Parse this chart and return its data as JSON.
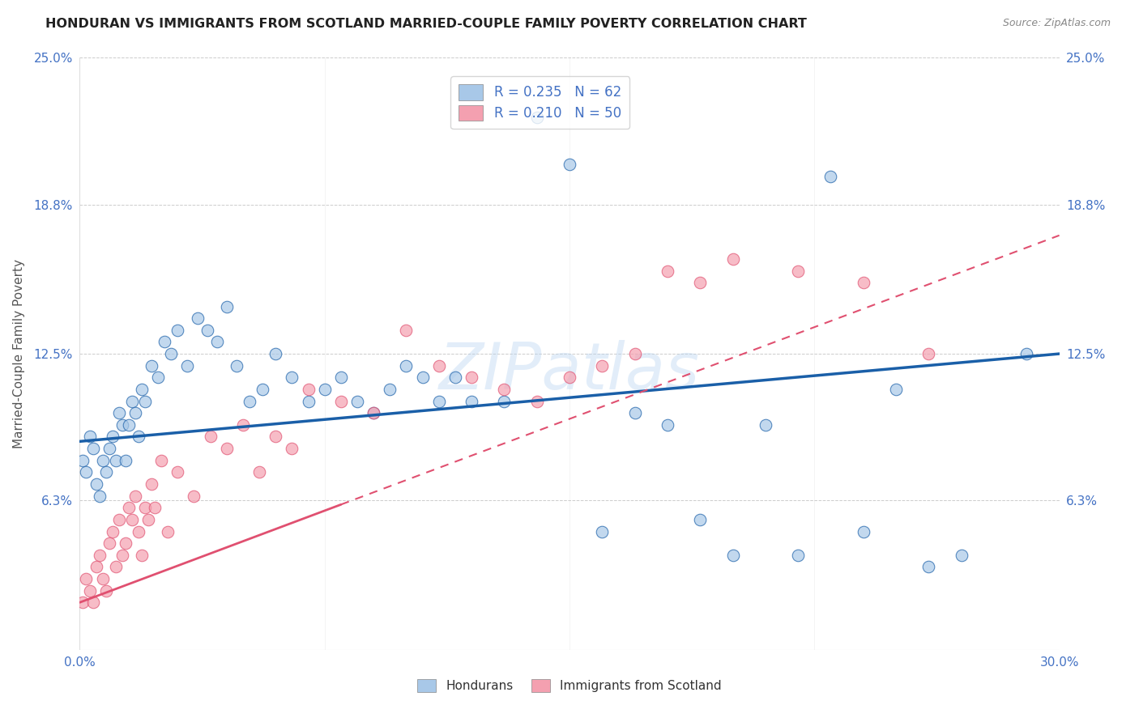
{
  "title": "HONDURAN VS IMMIGRANTS FROM SCOTLAND MARRIED-COUPLE FAMILY POVERTY CORRELATION CHART",
  "source": "Source: ZipAtlas.com",
  "ylabel": "Married-Couple Family Poverty",
  "xlim": [
    0,
    30
  ],
  "ylim": [
    0,
    25
  ],
  "ytick_vals": [
    0,
    6.3,
    12.5,
    18.8,
    25.0
  ],
  "ytick_labels": [
    "",
    "6.3%",
    "12.5%",
    "18.8%",
    "25.0%"
  ],
  "xtick_vals": [
    0,
    7.5,
    15.0,
    22.5,
    30.0
  ],
  "xtick_labels": [
    "0.0%",
    "",
    "",
    "",
    "30.0%"
  ],
  "legend_label1": "Hondurans",
  "legend_label2": "Immigrants from Scotland",
  "R1": 0.235,
  "N1": 62,
  "R2": 0.21,
  "N2": 50,
  "color1": "#a8c8e8",
  "color2": "#f4a0b0",
  "line_color1": "#1a5fa8",
  "line_color2": "#e05070",
  "watermark": "ZIPatlas",
  "background_color": "#ffffff",
  "grid_color": "#cccccc",
  "title_color": "#222222",
  "tick_label_color": "#4472c4",
  "hondurans_x": [
    0.1,
    0.2,
    0.3,
    0.4,
    0.5,
    0.6,
    0.7,
    0.8,
    0.9,
    1.0,
    1.1,
    1.2,
    1.3,
    1.4,
    1.5,
    1.6,
    1.7,
    1.8,
    1.9,
    2.0,
    2.2,
    2.4,
    2.6,
    2.8,
    3.0,
    3.3,
    3.6,
    3.9,
    4.2,
    4.5,
    4.8,
    5.2,
    5.6,
    6.0,
    6.5,
    7.0,
    7.5,
    8.0,
    8.5,
    9.0,
    9.5,
    10.0,
    10.5,
    11.0,
    11.5,
    12.0,
    13.0,
    14.0,
    15.0,
    16.0,
    17.0,
    18.0,
    19.0,
    20.0,
    21.0,
    22.0,
    23.0,
    24.0,
    25.0,
    26.0,
    27.0,
    29.0
  ],
  "hondurans_y": [
    8.0,
    7.5,
    9.0,
    8.5,
    7.0,
    6.5,
    8.0,
    7.5,
    8.5,
    9.0,
    8.0,
    10.0,
    9.5,
    8.0,
    9.5,
    10.5,
    10.0,
    9.0,
    11.0,
    10.5,
    12.0,
    11.5,
    13.0,
    12.5,
    13.5,
    12.0,
    14.0,
    13.5,
    13.0,
    14.5,
    12.0,
    10.5,
    11.0,
    12.5,
    11.5,
    10.5,
    11.0,
    11.5,
    10.5,
    10.0,
    11.0,
    12.0,
    11.5,
    10.5,
    11.5,
    10.5,
    10.5,
    22.5,
    20.5,
    5.0,
    10.0,
    9.5,
    5.5,
    4.0,
    9.5,
    4.0,
    20.0,
    5.0,
    11.0,
    3.5,
    4.0,
    12.5
  ],
  "scotland_x": [
    0.1,
    0.2,
    0.3,
    0.4,
    0.5,
    0.6,
    0.7,
    0.8,
    0.9,
    1.0,
    1.1,
    1.2,
    1.3,
    1.4,
    1.5,
    1.6,
    1.7,
    1.8,
    1.9,
    2.0,
    2.1,
    2.2,
    2.3,
    2.5,
    2.7,
    3.0,
    3.5,
    4.0,
    4.5,
    5.0,
    5.5,
    6.0,
    6.5,
    7.0,
    8.0,
    9.0,
    10.0,
    11.0,
    12.0,
    13.0,
    14.0,
    15.0,
    16.0,
    17.0,
    18.0,
    19.0,
    20.0,
    22.0,
    24.0,
    26.0
  ],
  "scotland_y": [
    2.0,
    3.0,
    2.5,
    2.0,
    3.5,
    4.0,
    3.0,
    2.5,
    4.5,
    5.0,
    3.5,
    5.5,
    4.0,
    4.5,
    6.0,
    5.5,
    6.5,
    5.0,
    4.0,
    6.0,
    5.5,
    7.0,
    6.0,
    8.0,
    5.0,
    7.5,
    6.5,
    9.0,
    8.5,
    9.5,
    7.5,
    9.0,
    8.5,
    11.0,
    10.5,
    10.0,
    13.5,
    12.0,
    11.5,
    11.0,
    10.5,
    11.5,
    12.0,
    12.5,
    16.0,
    15.5,
    16.5,
    16.0,
    15.5,
    12.5
  ],
  "scotland_solid_end_x": 8.0,
  "blue_line_y0": 8.8,
  "blue_line_y30": 12.5,
  "pink_line_y0": 2.0,
  "pink_line_y30": 17.5
}
